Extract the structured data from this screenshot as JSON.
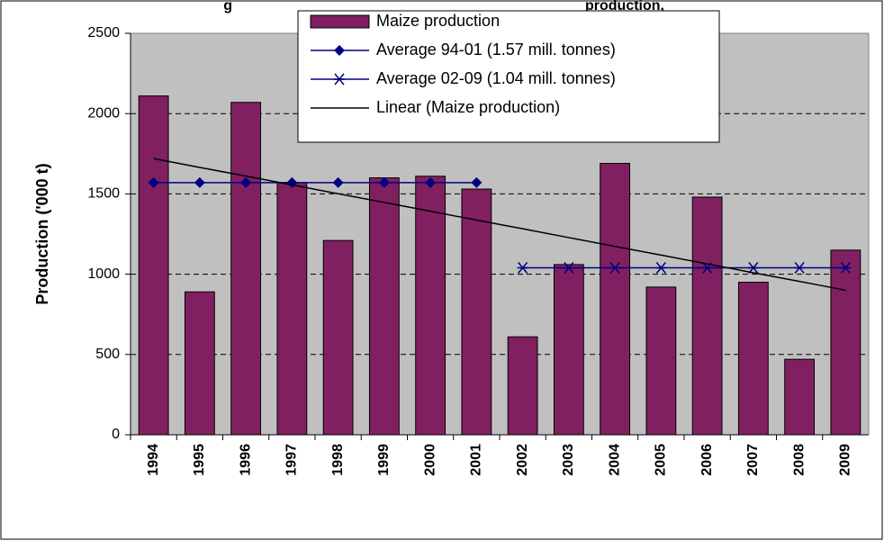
{
  "chart_data": {
    "type": "bar",
    "title_fragments": [
      "g",
      "production,"
    ],
    "y_label": "Production ('000 t)",
    "categories": [
      "1994",
      "1995",
      "1996",
      "1997",
      "1998",
      "1999",
      "2000",
      "2001",
      "2002",
      "2003",
      "2004",
      "2005",
      "2006",
      "2007",
      "2008",
      "2009"
    ],
    "series": [
      {
        "name": "Maize production",
        "type": "bar",
        "color": "#802060",
        "values": [
          2110,
          890,
          2070,
          1570,
          1210,
          1600,
          1610,
          1530,
          610,
          1060,
          1690,
          920,
          1480,
          950,
          470,
          1150
        ]
      },
      {
        "name": "Average 94-01 (1.57 mill. tonnes)",
        "type": "line",
        "marker": "diamond",
        "color": "#000080",
        "values": [
          1570,
          1570,
          1570,
          1570,
          1570,
          1570,
          1570,
          1570,
          null,
          null,
          null,
          null,
          null,
          null,
          null,
          null
        ]
      },
      {
        "name": "Average 02-09 (1.04 mill. tonnes)",
        "type": "line",
        "marker": "asterisk",
        "color": "#000080",
        "values": [
          null,
          null,
          null,
          null,
          null,
          null,
          null,
          null,
          1040,
          1040,
          1040,
          1040,
          1040,
          1040,
          1040,
          1040
        ]
      },
      {
        "name": "Linear (Maize production)",
        "type": "line",
        "marker": "none",
        "color": "#000000",
        "values": [
          1720,
          1665,
          1611,
          1556,
          1501,
          1447,
          1392,
          1337,
          1283,
          1228,
          1173,
          1119,
          1064,
          1009,
          955,
          900
        ]
      }
    ],
    "ylim": [
      0,
      2500
    ],
    "yticks": [
      0,
      500,
      1000,
      1500,
      2000,
      2500
    ],
    "grid": true,
    "plot_background": "#c0c0c0"
  }
}
